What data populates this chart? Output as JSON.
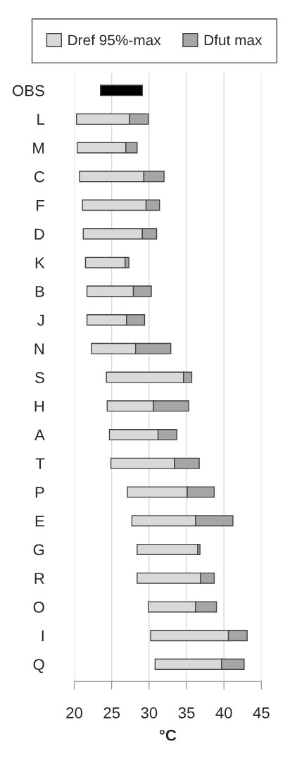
{
  "chart_data": {
    "type": "bar",
    "orientation": "horizontal",
    "xlabel": "°C",
    "categories": [
      "OBS",
      "L",
      "M",
      "C",
      "F",
      "D",
      "K",
      "B",
      "J",
      "N",
      "S",
      "H",
      "A",
      "T",
      "P",
      "E",
      "G",
      "R",
      "O",
      "I",
      "Q"
    ],
    "series": [
      {
        "name": "Dref 95%-max",
        "color": "#d9d9d9",
        "colors": [
          "#000000",
          "#d9d9d9",
          "#d9d9d9",
          "#d9d9d9",
          "#d9d9d9",
          "#d9d9d9",
          "#d9d9d9",
          "#d9d9d9",
          "#d9d9d9",
          "#d9d9d9",
          "#d9d9d9",
          "#d9d9d9",
          "#d9d9d9",
          "#d9d9d9",
          "#d9d9d9",
          "#d9d9d9",
          "#d9d9d9",
          "#d9d9d9",
          "#d9d9d9",
          "#d9d9d9",
          "#d9d9d9"
        ],
        "base": [
          23.5,
          20.3,
          20.4,
          20.7,
          21.1,
          21.2,
          21.5,
          21.7,
          21.7,
          22.3,
          24.3,
          24.4,
          24.7,
          24.9,
          27.1,
          27.7,
          28.4,
          28.4,
          29.9,
          30.2,
          30.8
        ],
        "values": [
          5.6,
          7.1,
          6.5,
          8.6,
          8.5,
          7.9,
          5.3,
          6.2,
          5.3,
          5.9,
          10.3,
          6.2,
          6.5,
          8.5,
          8.0,
          8.5,
          8.1,
          8.5,
          6.3,
          10.4,
          8.9
        ]
      },
      {
        "name": "Dfut max",
        "color": "#a6a6a6",
        "base": [
          null,
          27.4,
          26.9,
          29.3,
          29.6,
          29.1,
          26.8,
          27.9,
          27.0,
          28.2,
          34.6,
          30.6,
          31.2,
          33.4,
          35.1,
          36.2,
          36.5,
          36.9,
          36.2,
          40.6,
          39.7
        ],
        "values": [
          null,
          2.5,
          1.5,
          2.7,
          1.8,
          1.9,
          0.5,
          2.4,
          2.4,
          4.7,
          1.1,
          4.7,
          2.5,
          3.3,
          3.6,
          5.0,
          0.3,
          1.8,
          2.8,
          2.5,
          3.0
        ]
      }
    ],
    "xlim": [
      20,
      45
    ],
    "xticks": [
      20,
      25,
      30,
      35,
      40,
      45
    ],
    "grid": "x",
    "legend": "top"
  }
}
